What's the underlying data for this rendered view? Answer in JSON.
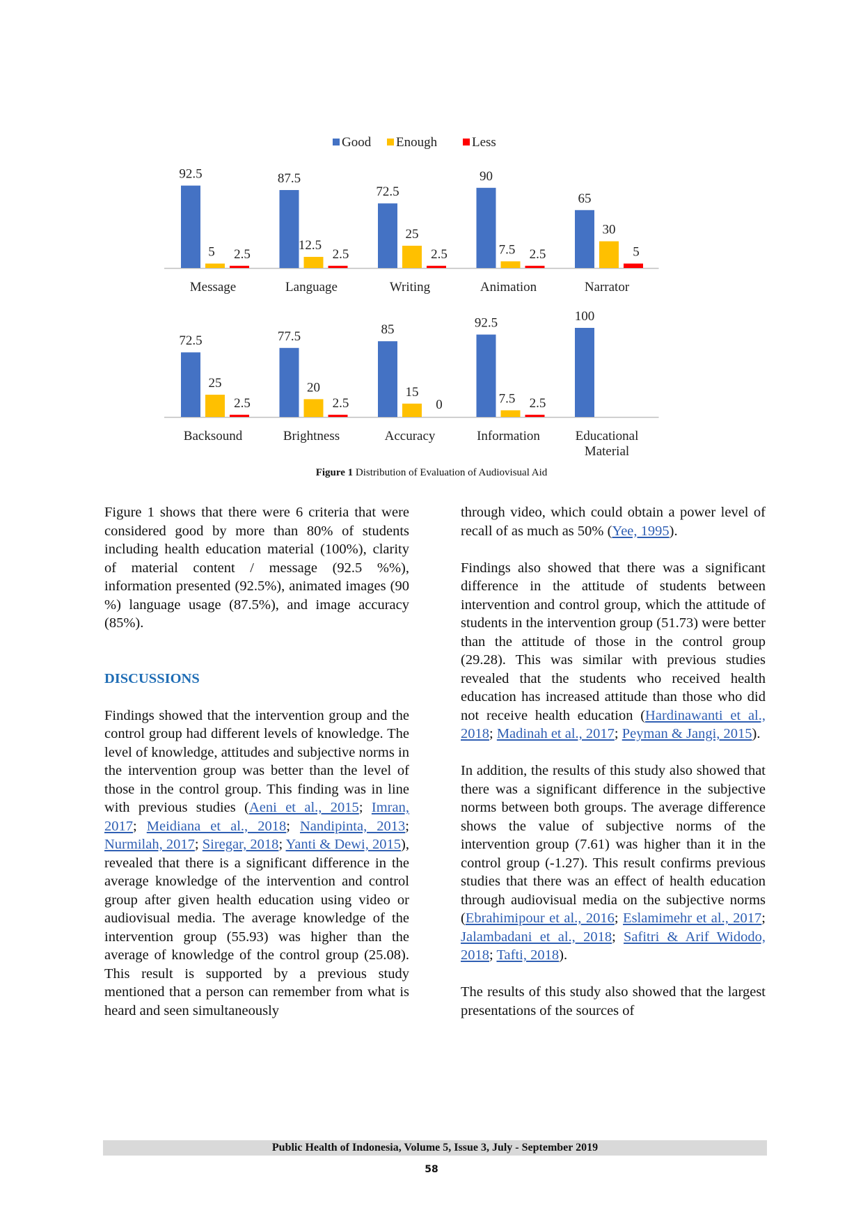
{
  "chart_data": [
    {
      "type": "bar",
      "title": "",
      "xlabel": "",
      "ylabel": "",
      "ylim": [
        0,
        100
      ],
      "grid": false,
      "legend": "top-center",
      "categories": [
        "Message",
        "Language",
        "Writing",
        "Animation",
        "Narrator"
      ],
      "series": [
        {
          "name": "Good",
          "color": "#4472c4",
          "values": [
            92.5,
            87.5,
            72.5,
            90,
            65
          ]
        },
        {
          "name": "Enough",
          "color": "#ffc000",
          "values": [
            5,
            12.5,
            25,
            7.5,
            30
          ]
        },
        {
          "name": "Less",
          "color": "#ff0000",
          "values": [
            2.5,
            2.5,
            2.5,
            2.5,
            5
          ]
        }
      ]
    },
    {
      "type": "bar",
      "title": "",
      "xlabel": "",
      "ylabel": "",
      "ylim": [
        0,
        100
      ],
      "grid": false,
      "legend": "none",
      "categories": [
        "Backsound",
        "Brightness",
        "Accuracy",
        "Information",
        "Educational Material"
      ],
      "series": [
        {
          "name": "Good",
          "color": "#4472c4",
          "values": [
            72.5,
            77.5,
            85,
            92.5,
            100
          ]
        },
        {
          "name": "Enough",
          "color": "#ffc000",
          "values": [
            25,
            20,
            15,
            7.5,
            null
          ]
        },
        {
          "name": "Less",
          "color": "#ff0000",
          "values": [
            2.5,
            2.5,
            0,
            2.5,
            null
          ]
        }
      ]
    }
  ],
  "figure": {
    "label": "Figure 1",
    "caption": " Distribution of Evaluation of Audiovisual Aid"
  },
  "left_column": {
    "p1": "Figure 1 shows that there were 6 criteria that were considered good by more than 80% of students including health education material (100%), clarity of material content / message (92.5 %%), information presented (92.5%), animated images (90 %) language usage (87.5%), and image accuracy (85%).",
    "heading": "DISCUSSIONS",
    "p2a": "Findings showed that the intervention group and the control group had different levels of knowledge. The level of knowledge, attitudes and subjective norms in the intervention group was better than the level of those in the control group. This finding was in line with previous studies (",
    "r1": "Aeni et al., 2015",
    "r2": "Imran, 2017",
    "r3": "Meidiana et al., 2018",
    "r4": "Nandipinta, 2013",
    "r5": "Nurmilah, 2017",
    "r6": "Siregar, 2018",
    "r7": "Yanti & Dewi, 2015",
    "p2b": "), revealed that there is a significant difference in the average knowledge of the intervention and control group after given health education using video or audiovisual media. The average knowledge of the intervention group (55.93) was higher than the average of knowledge of the control group (25.08). This result is supported by a previous study mentioned that a person can remember from what is heard and seen simultaneously"
  },
  "right_column": {
    "p1a": "through video, which could obtain a power level of recall of as much as 50% (",
    "r1": "Yee, 1995",
    "p1b": ").",
    "p2a": "Findings also showed that there was a significant difference in the attitude of students between intervention and control group, which the attitude of students in the intervention group (51.73) were better than the attitude of those in the control group (29.28). This was similar with previous studies revealed that the students who received health education has increased attitude than those who did not receive health education (",
    "r2": "Hardinawanti et al., 2018",
    "r3": "Madinah et al., 2017",
    "r4": "Peyman & Jangi, 2015",
    "p2b": ").",
    "p3a": "In addition, the results of this study also showed that there was a significant difference in the subjective norms between both groups. The average difference shows the value of subjective norms of the intervention group (7.61) was higher than it in the control group (-1.27). This result confirms previous studies that there was an effect of health education through audiovisual media on the subjective norms (",
    "r5": "Ebrahimipour et al., 2016",
    "r6": "Eslamimehr et al., 2017",
    "r7": "Jalambadani et al., 2018",
    "r8": "Safitri & Arif Widodo, 2018",
    "r9": "Tafti, 2018",
    "p3b": ").",
    "p4": "The results of this study also showed that the largest presentations of the sources of"
  },
  "footer": {
    "journal": "Public Health of Indonesia, Volume 5, Issue 3, July -  September  2019",
    "page": "58"
  }
}
